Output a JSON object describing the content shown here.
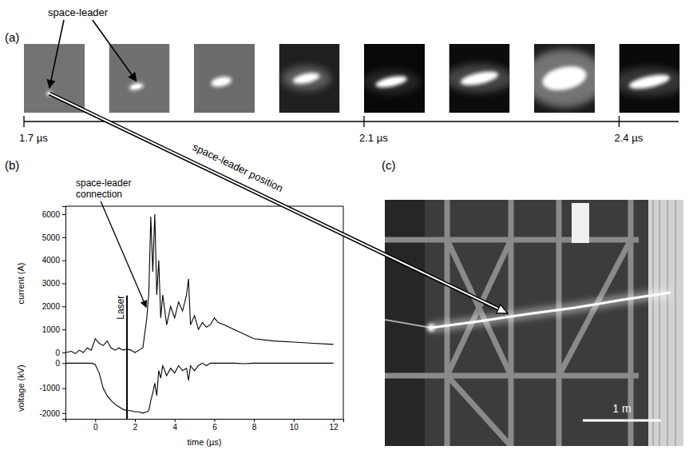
{
  "panel_labels": [
    "(a)",
    "(b)",
    "(c)"
  ],
  "frames": {
    "annotation": "space-leader",
    "times": [
      1.7,
      1.8,
      1.9,
      2.0,
      2.1,
      2.2,
      2.3,
      2.4
    ],
    "lim": [
      1.7,
      2.47
    ],
    "ticks": [
      {
        "value": 1.7,
        "label": "1.7 µs"
      },
      {
        "value": 2.1,
        "label": "2.1 µs"
      },
      {
        "value": 2.4,
        "label": "2.4 µs"
      }
    ]
  },
  "link_annotation": "space-leader position",
  "photo": {
    "scale_bar": "1 m"
  },
  "chart_data": {
    "type": "line",
    "x": [
      -1.5,
      -1.2,
      -1.0,
      -0.8,
      -0.6,
      -0.4,
      -0.2,
      0,
      0.2,
      0.4,
      0.6,
      0.8,
      1.0,
      1.2,
      1.4,
      1.6,
      1.8,
      2.0,
      2.2,
      2.4,
      2.6,
      2.7,
      2.8,
      2.9,
      3.0,
      3.1,
      3.2,
      3.3,
      3.4,
      3.6,
      3.8,
      4.0,
      4.2,
      4.4,
      4.6,
      4.7,
      4.8,
      5.0,
      5.2,
      5.4,
      5.6,
      5.8,
      6.0,
      6.2,
      6.5,
      7.0,
      7.5,
      8,
      9,
      10,
      11,
      12
    ],
    "xlim": [
      -1.5,
      12.5
    ],
    "xticks": [
      0,
      2,
      4,
      6,
      8,
      10,
      12
    ],
    "xlabel": "time (µs)",
    "ylim": [
      -2880,
      6350
    ],
    "yticks": [
      0,
      1000,
      2000,
      3000,
      4000,
      5000,
      6000
    ],
    "y2lim": [
      -2230,
      6290
    ],
    "y2ticks": [
      -2000,
      -1000,
      0
    ],
    "series": [
      {
        "name": "current (A)",
        "color": "#000000",
        "values": [
          0,
          50,
          -50,
          100,
          0,
          200,
          100,
          600,
          400,
          300,
          500,
          200,
          100,
          200,
          100,
          150,
          100,
          0,
          100,
          200,
          1500,
          2600,
          5900,
          3500,
          6000,
          2500,
          4000,
          1500,
          2500,
          1200,
          2000,
          1500,
          2200,
          1800,
          2500,
          3200,
          1200,
          1600,
          1000,
          1300,
          1100,
          1200,
          1500,
          1300,
          1200,
          1000,
          800,
          600,
          500,
          450,
          400,
          350
        ]
      },
      {
        "name": "voltage (kV)",
        "color": "#000000",
        "axis": "y2",
        "values": [
          0,
          0,
          0,
          0,
          0,
          0,
          0,
          -50,
          -400,
          -1000,
          -1300,
          -1500,
          -1650,
          -1750,
          -1850,
          -1900,
          -1900,
          -1950,
          -1950,
          -2000,
          -1950,
          -1900,
          -1500,
          -1200,
          -800,
          -1300,
          -300,
          -600,
          -100,
          -500,
          -200,
          -400,
          -100,
          -300,
          -200,
          -700,
          -100,
          -300,
          -100,
          0,
          -100,
          0,
          0,
          0,
          0,
          0,
          -20,
          0,
          0,
          0,
          0,
          0
        ]
      }
    ],
    "annotations": [
      {
        "text": "space-leader connection",
        "x": 2.65,
        "y": 2000
      },
      {
        "text": "Laser",
        "x": 1.6
      }
    ],
    "grid": false
  }
}
